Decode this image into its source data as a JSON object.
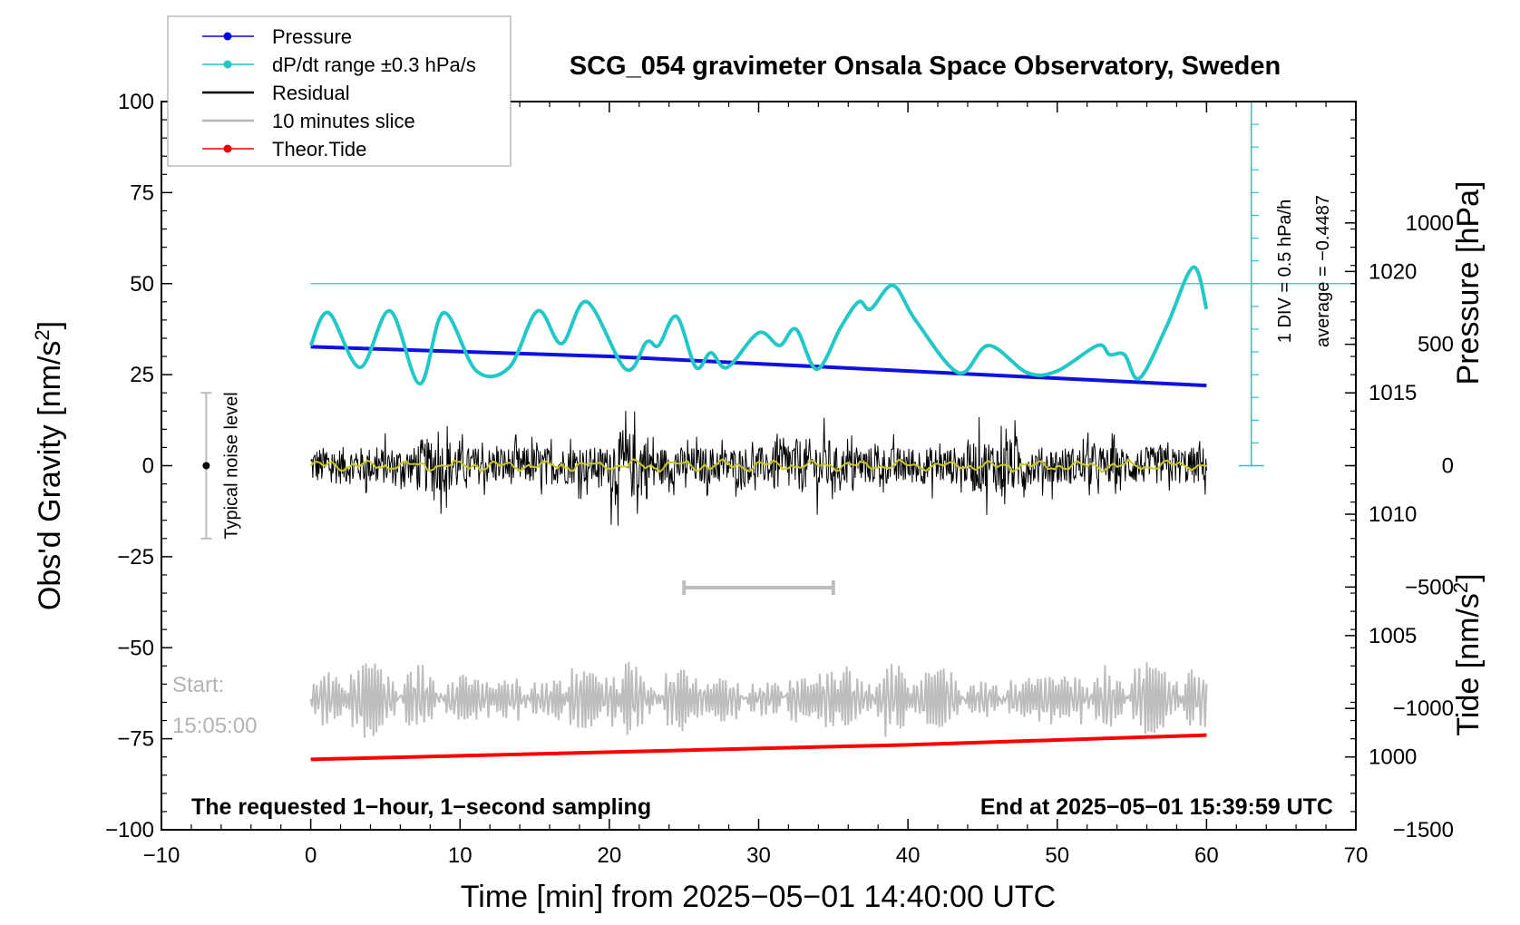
{
  "chart_data": {
    "type": "line",
    "title": "SCG_054 gravimeter Onsala Space Observatory, Sweden",
    "xlabel": "Time [min] from 2025−05−01 14:40:00 UTC",
    "ylabel": "Obs'd Gravity [nm/s",
    "ylabel_sup": "2",
    "ylabel_tail": "]",
    "y2label_pressure": "Pressure [hPa]",
    "y2label_tide": "Tide [nm/s",
    "y2label_tide_sup": "2",
    "y2label_tide_tail": "]",
    "xlim": [
      -10,
      70
    ],
    "ylim": [
      -100,
      100
    ],
    "pressure_lim": [
      997,
      1027
    ],
    "tide_lim": [
      -1500,
      1500
    ],
    "x_ticks": [
      -10,
      0,
      10,
      20,
      30,
      40,
      50,
      60,
      70
    ],
    "x_tick_labels": [
      "−10",
      "0",
      "10",
      "20",
      "30",
      "40",
      "50",
      "60",
      "70"
    ],
    "y_ticks": [
      -100,
      -75,
      -50,
      -25,
      0,
      25,
      50,
      75,
      100
    ],
    "y_tick_labels": [
      "−100",
      "−75",
      "−50",
      "−25",
      "0",
      "25",
      "50",
      "75",
      "100"
    ],
    "pressure_ticks": [
      1000,
      1005,
      1010,
      1015,
      1020
    ],
    "pressure_tick_labels": [
      "1000",
      "1005",
      "1010",
      "1015",
      "1020"
    ],
    "tide_ticks": [
      -1500,
      -1000,
      -500,
      0,
      500,
      1000
    ],
    "tide_tick_labels": [
      "−1500",
      "−1000",
      "−500",
      "0",
      "500",
      "1000"
    ],
    "legend": {
      "placement": "top-left",
      "entries": [
        {
          "label": "Pressure",
          "color": "#0000ee",
          "marker": true
        },
        {
          "label": "dP/dt range ±0.3 hPa/s",
          "color": "#20c8c8",
          "marker": true
        },
        {
          "label": "Residual",
          "color": "#000000",
          "marker": false
        },
        {
          "label": "10 minutes slice",
          "color": "#b8b8b8",
          "marker": false
        },
        {
          "label": "Theor.Tide",
          "color": "#ee0000",
          "marker": true
        }
      ]
    },
    "series": [
      {
        "name": "Pressure",
        "color": "#1010e0",
        "x": [
          0,
          10,
          20,
          30,
          40,
          50,
          60
        ],
        "y": [
          1016.9,
          1016.7,
          1016.5,
          1016.2,
          1015.9,
          1015.6,
          1015.3
        ]
      },
      {
        "name": "dP/dt range ±0.3 hPa/s",
        "color": "#22c8c8",
        "x": [
          0,
          1.2,
          3.3,
          5.3,
          7.3,
          8.9,
          11.1,
          13.3,
          15.2,
          16.8,
          18.5,
          21.1,
          22.5,
          23.3,
          24.5,
          25.8,
          26.8,
          27.9,
          30,
          31.4,
          32.5,
          33.9,
          35.5,
          36.7,
          37.5,
          39,
          40.5,
          43.4,
          45.4,
          48,
          50,
          52.7,
          53.5,
          54.5,
          55.5,
          57.3,
          59.1,
          60
        ],
        "y": [
          33,
          42,
          27,
          42.5,
          22.5,
          42,
          26,
          27,
          42.5,
          33.5,
          45,
          26.5,
          34,
          33,
          41,
          27,
          31,
          27,
          36.5,
          33,
          37.5,
          26.5,
          38,
          45,
          43,
          49.5,
          40,
          25.5,
          33,
          25.5,
          26,
          33,
          30.5,
          30.5,
          24,
          38,
          54.5,
          43
        ]
      },
      {
        "name": "Residual",
        "color": "#000000",
        "x": [
          0,
          60
        ],
        "y": [
          0,
          0
        ],
        "amplitude_range": [
          -18,
          17
        ]
      },
      {
        "name": "10 minutes slice",
        "color": "#bdbdbd",
        "x": [
          25,
          35
        ],
        "y": [
          -57,
          -76
        ],
        "display_offset": -64
      },
      {
        "name": "Theor.Tide",
        "color": "#ff0000",
        "x": [
          0,
          20,
          40,
          60
        ],
        "y": [
          -1210,
          -1180,
          -1150,
          -1110
        ]
      }
    ],
    "annotations": {
      "noise_label": "Typical noise level",
      "noise_range": [
        -20,
        20
      ],
      "noise_center_x": -7,
      "slice_range_x": [
        25,
        35
      ],
      "slice_range_y": -33.5,
      "div_note": "1 DIV = 0.5 hPa/h",
      "average_note": "average = −0.4487",
      "start_label": "Start:",
      "start_time": "15:05:00",
      "bottom_left_note": "The requested 1−hour, 1−second sampling",
      "bottom_right_note": "End at 2025−05−01 15:39:59 UTC",
      "dpdt_ref_y": 50
    },
    "grid": false
  }
}
